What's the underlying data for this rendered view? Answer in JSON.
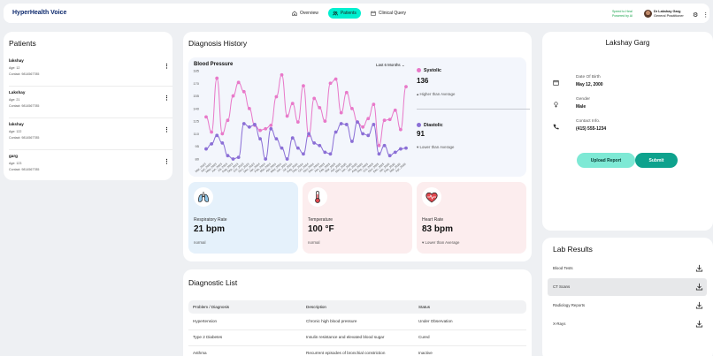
{
  "header": {
    "brand": "HyperHealth Voice",
    "nav": [
      {
        "label": "Overview",
        "icon": "home-icon",
        "active": false
      },
      {
        "label": "Patients",
        "icon": "users-icon",
        "active": true
      },
      {
        "label": "Clinical Query",
        "icon": "calendar-icon",
        "active": false
      }
    ],
    "speed_line1": "Speed to Heal",
    "speed_line2": "Powered by AI",
    "doctor_name": "Dr Lakshay Garg",
    "doctor_role": "General Practitioner",
    "icons": [
      "settings-icon",
      "more-vertical-icon"
    ]
  },
  "patients": {
    "title": "Patients",
    "items": [
      {
        "name": "lakshay",
        "age": "Age: 12",
        "contact": "Contact: 9814567785"
      },
      {
        "name": "Lakshay",
        "age": "Age: 21",
        "contact": "Contact: 9814567785"
      },
      {
        "name": "lakshay",
        "age": "Age: 122",
        "contact": "Contact: 9814567785"
      },
      {
        "name": "garg",
        "age": "Age: 123",
        "contact": "Contact: 9814567785"
      }
    ]
  },
  "diagnosis": {
    "title": "Diagnosis History",
    "bp_title": "Blood Pressure",
    "range": "Last 6 Months",
    "systolic": {
      "label": "Systolic",
      "value": "136",
      "note": "Higher than Average",
      "color": "#e879c9"
    },
    "diastolic": {
      "label": "Diastolic",
      "value": "91",
      "note": "Lower than Average",
      "color": "#8b6fd6"
    }
  },
  "chart_data": {
    "type": "line",
    "title": "Blood Pressure",
    "categories": [
      "Mar, 2023",
      "Apr, 2023",
      "May, 2023",
      "Jun, 2023",
      "Jul, 2023",
      "Aug, 2023",
      "Sep, 2023",
      "Oct, 2023",
      "Nov, 2023",
      "Dec, 2023",
      "Jan, 2024",
      "Feb, 2024",
      "Mar, 2024",
      "Apr, 2024",
      "May, 2024",
      "Jun, 2024",
      "Jul, 2024",
      "Aug, 2024",
      "Sep, 2024",
      "Oct, 2024",
      "Nov, 2024",
      "Dec, 2024",
      "Jan, 2025",
      "Feb, 2025",
      "Mar, 2025",
      "Apr, 2025",
      "May, 2025",
      "Jun, 2025",
      "Jul, 2025",
      "Aug, 2025",
      "Sep, 2025",
      "Oct, 2025",
      "Nov, 2025",
      "Dec, 2025",
      "Jan, 2026",
      "Feb, 2026",
      "Mar, 2026",
      "Apr, 2026"
    ],
    "yticks": [
      80,
      95,
      110,
      125,
      140,
      155,
      170,
      185
    ],
    "ylim": [
      80,
      185
    ],
    "series": [
      {
        "name": "Systolic",
        "color": "#e879c9",
        "values": [
          130,
          112,
          176,
          110,
          126,
          155,
          171,
          160,
          140,
          120,
          114,
          116,
          120,
          154,
          180,
          131,
          146,
          124,
          167,
          108,
          152,
          141,
          125,
          170,
          175,
          135,
          159,
          140,
          124,
          118,
          128,
          145,
          96,
          126,
          127,
          138,
          115,
          166
        ]
      },
      {
        "name": "Diastolic",
        "color": "#8b6fd6",
        "values": [
          92,
          98,
          108,
          99,
          84,
          80,
          82,
          122,
          118,
          121,
          104,
          80,
          116,
          104,
          93,
          80,
          105,
          93,
          86,
          110,
          99,
          96,
          88,
          86,
          112,
          122,
          121,
          101,
          124,
          110,
          108,
          121,
          86,
          96,
          84,
          88,
          92,
          93
        ]
      }
    ]
  },
  "vitals": [
    {
      "label": "Respiratory Rate",
      "value": "21 bpm",
      "note": "normal",
      "icon": "lungs-icon",
      "bg": "#e5f1fb"
    },
    {
      "label": "Temperature",
      "value": "100 °F",
      "note": "normal",
      "icon": "thermometer-icon",
      "bg": "#fcedee"
    },
    {
      "label": "Heart Rate",
      "value": "83 bpm",
      "note": "Lower than Average",
      "icon": "heart-icon",
      "bg": "#fcedee"
    }
  ],
  "diagnostic_list": {
    "title": "Diagnostic List",
    "headers": [
      "Problem / Diagnosis",
      "Description",
      "Status"
    ],
    "rows": [
      [
        "Hypertension",
        "Chronic high blood pressure",
        "Under Observation"
      ],
      [
        "Type 2 Diabetes",
        "Insulin resistance and elevated blood sugar",
        "Cured"
      ],
      [
        "Asthma",
        "Recurrent episodes of bronchial constriction",
        "Inactive"
      ]
    ]
  },
  "profile": {
    "name": "Lakshay Garg",
    "dob_label": "Date Of Birth",
    "dob": "May 12, 2000",
    "gender_label": "Gender",
    "gender": "Male",
    "contact_label": "Contact Info.",
    "contact": "(415) 555-1234",
    "upload_label": "Upload Report",
    "submit_label": "Submit"
  },
  "lab": {
    "title": "Lab Results",
    "items": [
      {
        "label": "Blood Tests",
        "selected": false
      },
      {
        "label": "CT Scans",
        "selected": true
      },
      {
        "label": "Radiology Reports",
        "selected": false
      },
      {
        "label": "X-Rays",
        "selected": false
      }
    ]
  }
}
